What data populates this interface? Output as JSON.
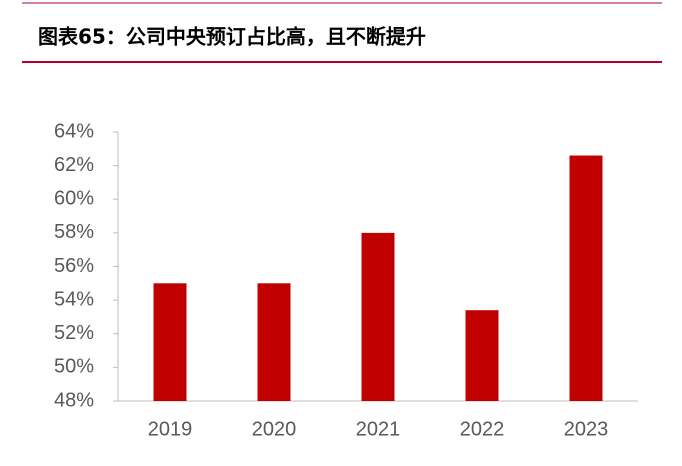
{
  "chart_data": {
    "type": "bar",
    "title": "图表65：公司中央预订占比高，且不断提升",
    "categories": [
      "2019",
      "2020",
      "2021",
      "2022",
      "2023"
    ],
    "values": [
      55,
      55,
      58,
      53.4,
      62.6
    ],
    "color": "#c00000",
    "ylim": [
      48,
      64
    ],
    "yticks": [
      {
        "value": 48,
        "label": "48%"
      },
      {
        "value": 50,
        "label": "50%"
      },
      {
        "value": 52,
        "label": "52%"
      },
      {
        "value": 54,
        "label": "54%"
      },
      {
        "value": 56,
        "label": "56%"
      },
      {
        "value": 58,
        "label": "58%"
      },
      {
        "value": 60,
        "label": "60%"
      },
      {
        "value": 62,
        "label": "62%"
      },
      {
        "value": 64,
        "label": "64%"
      }
    ],
    "grid": false
  }
}
